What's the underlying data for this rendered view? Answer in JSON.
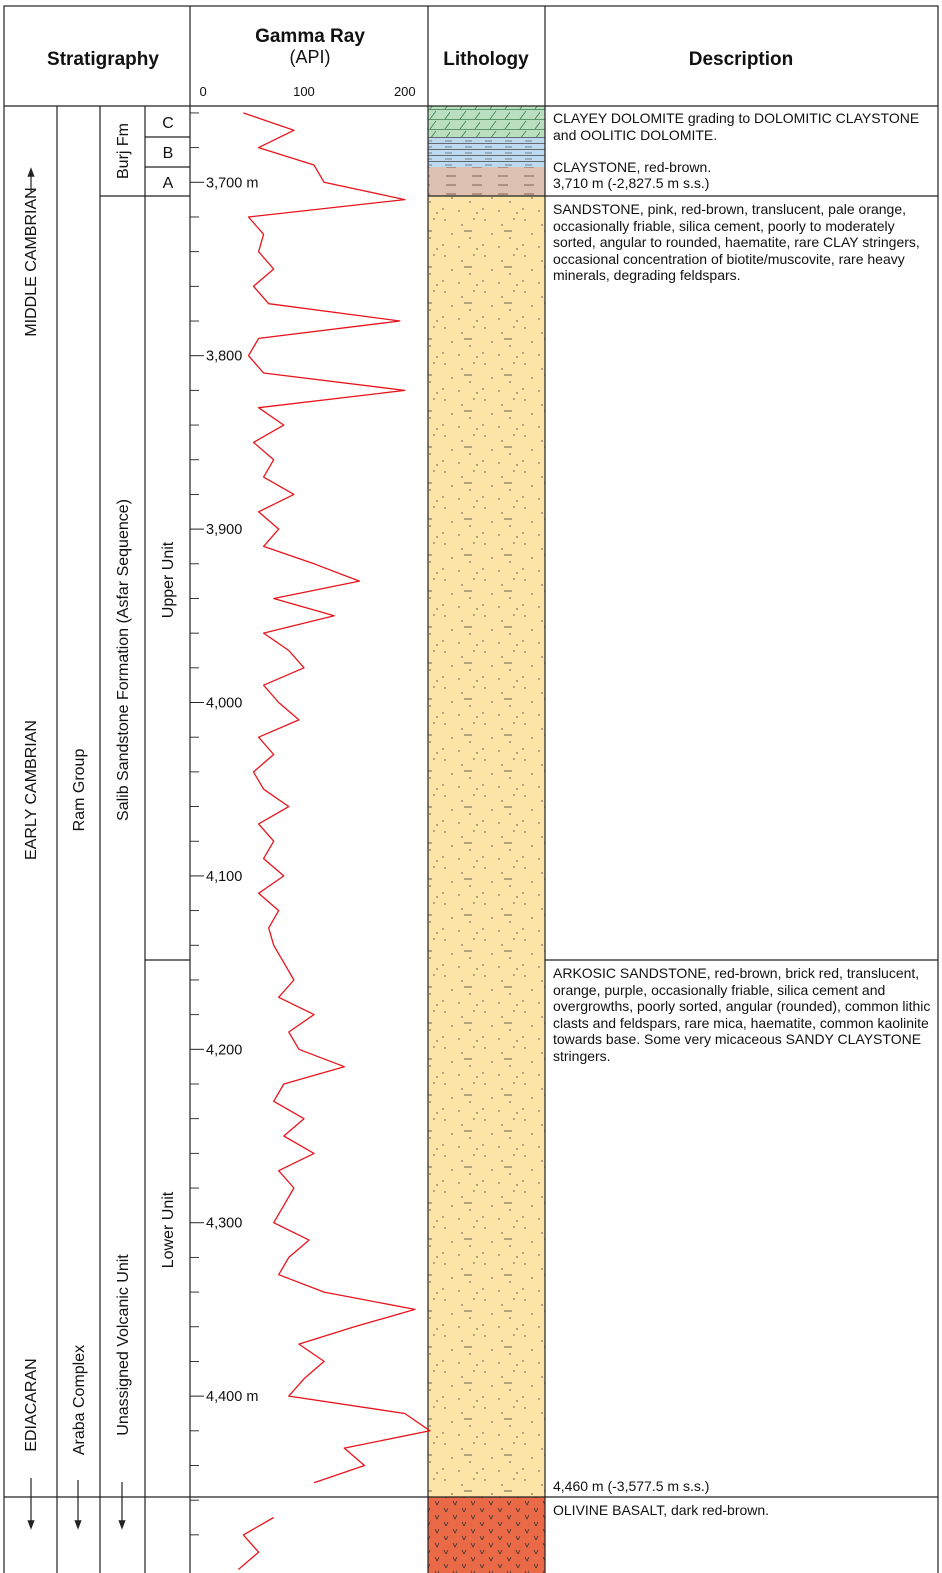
{
  "header": {
    "stratigraphy": "Stratigraphy",
    "gamma_title": "Gamma Ray",
    "gamma_unit": "(API)",
    "lithology": "Lithology",
    "description": "Description"
  },
  "stratigraphy": {
    "eras": [
      "MIDDLE CAMBRIAN",
      "EARLY CAMBRIAN",
      "EDIACARAN"
    ],
    "groups": [
      "Ram Group",
      "Araba Complex"
    ],
    "formations": [
      "Burj Fm",
      "Salib Sandstone Formation (Asfar Sequence)",
      "Unassigned Volcanic Unit"
    ],
    "members": [
      "C",
      "B",
      "A",
      "Upper Unit",
      "Lower Unit"
    ]
  },
  "chart_data": {
    "type": "line",
    "color": "#e8141b",
    "xlim": [
      -13,
      223
    ],
    "xticks": [
      0,
      100,
      200
    ],
    "ylim": [
      3656,
      4502
    ],
    "yticks": [
      {
        "value": 3700,
        "label": "3,700 m"
      },
      {
        "value": 3800,
        "label": "3,800"
      },
      {
        "value": 3900,
        "label": "3,900"
      },
      {
        "value": 4000,
        "label": "4,000"
      },
      {
        "value": 4100,
        "label": "4,100"
      },
      {
        "value": 4200,
        "label": "4,200"
      },
      {
        "value": 4300,
        "label": "4,300"
      },
      {
        "value": 4400,
        "label": "4,400 m"
      }
    ],
    "minor_yticks": [
      3660,
      3680,
      3720,
      3740,
      3760,
      3780,
      3820,
      3840,
      3860,
      3880,
      3920,
      3940,
      3960,
      3980,
      4020,
      4040,
      4060,
      4080,
      4120,
      4140,
      4160,
      4180,
      4220,
      4240,
      4260,
      4280,
      4320,
      4340,
      4360,
      4380,
      4420,
      4440,
      4460,
      4480
    ],
    "depth": [
      3660,
      3670,
      3680,
      3690,
      3700,
      3710,
      3720,
      3730,
      3740,
      3750,
      3760,
      3770,
      3780,
      3790,
      3800,
      3810,
      3820,
      3830,
      3840,
      3850,
      3860,
      3870,
      3880,
      3890,
      3900,
      3910,
      3920,
      3930,
      3940,
      3950,
      3960,
      3970,
      3980,
      3990,
      4000,
      4010,
      4020,
      4030,
      4040,
      4050,
      4060,
      4070,
      4080,
      4090,
      4100,
      4110,
      4120,
      4130,
      4140,
      4150,
      4160,
      4170,
      4180,
      4190,
      4200,
      4210,
      4220,
      4230,
      4240,
      4250,
      4260,
      4270,
      4280,
      4290,
      4300,
      4310,
      4320,
      4330,
      4340,
      4350,
      4360,
      4370,
      4380,
      4390,
      4400,
      4410,
      4420,
      4430,
      4440,
      4450,
      4460,
      4470,
      4480,
      4490,
      4500
    ],
    "values": [
      40,
      90,
      55,
      110,
      120,
      200,
      45,
      60,
      55,
      70,
      50,
      65,
      195,
      55,
      45,
      60,
      200,
      55,
      80,
      50,
      70,
      60,
      90,
      55,
      75,
      60,
      110,
      155,
      70,
      130,
      60,
      85,
      100,
      60,
      75,
      95,
      55,
      70,
      50,
      60,
      85,
      55,
      70,
      60,
      80,
      55,
      75,
      65,
      70,
      80,
      90,
      75,
      110,
      85,
      95,
      140,
      80,
      70,
      100,
      80,
      110,
      75,
      90,
      80,
      70,
      105,
      85,
      75,
      120,
      210,
      150,
      95,
      120,
      100,
      85,
      200,
      225,
      140,
      160,
      110,
      null,
      70,
      40,
      55,
      35
    ]
  },
  "descriptions": [
    "CLAYEY DOLOMITE grading to DOLOMITIC CLAYSTONE and OOLITIC DOLOMITE.",
    "CLAYSTONE, red-brown.",
    "3,710 m (-2,827.5 m s.s.)",
    "SANDSTONE, pink, red-brown, translucent, pale orange, occasionally friable, silica cement, poorly to moderately sorted, angular to rounded, haematite, rare CLAY stringers, occasional concentration of biotite/muscovite, rare heavy minerals, degrading feldspars.",
    "ARKOSIC SANDSTONE, red-brown, brick red, translucent, orange, purple, occasionally friable, silica cement and overgrowths, poorly sorted, angular (rounded), common lithic clasts and feldspars, rare mica, haematite, common kaolinite towards base. Some very micaceous SANDY CLAYSTONE stringers.",
    "4,460 m (-3,577.5 m s.s.)",
    "OLIVINE BASALT, dark red-brown."
  ]
}
